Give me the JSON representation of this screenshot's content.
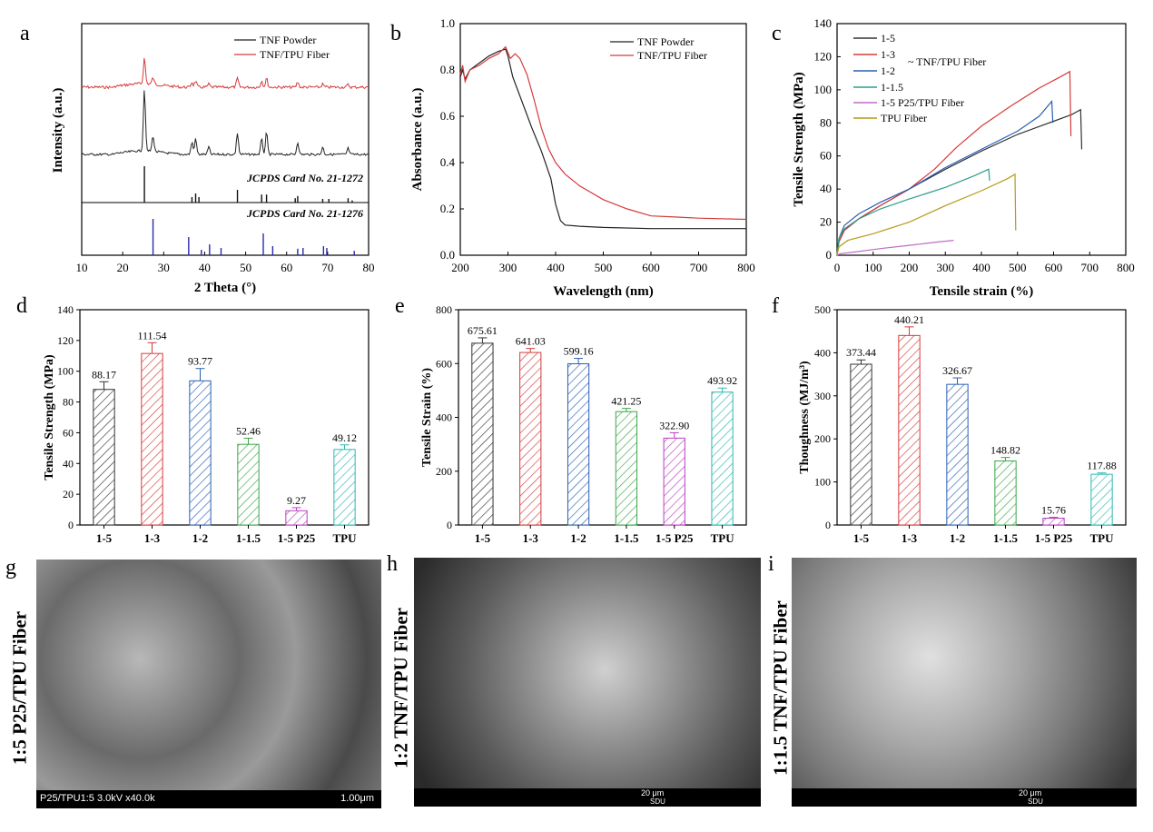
{
  "panels": {
    "a": {
      "letter": "a",
      "type": "line",
      "xlabel": "2 Theta (°)",
      "ylabel": "Intensity (a.u.)",
      "xlim": [
        10,
        80
      ],
      "xticks": [
        10,
        20,
        30,
        40,
        50,
        60,
        70,
        80
      ],
      "legend": [
        "TNF Powder",
        "TNF/TPU Fiber"
      ],
      "card1": "JCPDS Card No. 21-1272",
      "card2": "JCPDS Card No. 21-1276",
      "colors": {
        "powder": "#222222",
        "fiber": "#d63a3a",
        "card1": "#111111",
        "card2": "#2a2aa8"
      },
      "card1_peaks": [
        [
          25.3,
          1.0
        ],
        [
          36.9,
          0.15
        ],
        [
          37.8,
          0.25
        ],
        [
          38.6,
          0.15
        ],
        [
          48.0,
          0.35
        ],
        [
          53.9,
          0.22
        ],
        [
          55.1,
          0.22
        ],
        [
          62.1,
          0.12
        ],
        [
          62.7,
          0.18
        ],
        [
          68.8,
          0.1
        ],
        [
          70.3,
          0.1
        ],
        [
          75.0,
          0.12
        ],
        [
          76.0,
          0.06
        ]
      ],
      "card2_peaks": [
        [
          27.4,
          1.0
        ],
        [
          36.1,
          0.5
        ],
        [
          39.2,
          0.15
        ],
        [
          41.2,
          0.3
        ],
        [
          44.0,
          0.2
        ],
        [
          54.3,
          0.6
        ],
        [
          56.6,
          0.25
        ],
        [
          62.7,
          0.18
        ],
        [
          64.0,
          0.2
        ],
        [
          69.0,
          0.25
        ],
        [
          69.8,
          0.2
        ],
        [
          76.5,
          0.12
        ]
      ]
    },
    "b": {
      "letter": "b",
      "type": "line",
      "xlabel": "Wavelength (nm)",
      "ylabel": "Absorbance (a.u.)",
      "xlim": [
        200,
        800
      ],
      "ylim": [
        0,
        1.0
      ],
      "xticks": [
        200,
        300,
        400,
        500,
        600,
        700,
        800
      ],
      "yticks": [
        "0.0",
        "0.2",
        "0.4",
        "0.6",
        "0.8",
        "1.0"
      ],
      "legend": [
        "TNF Powder",
        "TNF/TPU Fiber"
      ],
      "colors": {
        "powder": "#222222",
        "fiber": "#d63a3a"
      },
      "series": [
        {
          "name": "TNF Powder",
          "color": "#222222",
          "points": [
            [
              200,
              0.77
            ],
            [
              205,
              0.8
            ],
            [
              210,
              0.76
            ],
            [
              220,
              0.8
            ],
            [
              240,
              0.83
            ],
            [
              260,
              0.86
            ],
            [
              280,
              0.88
            ],
            [
              295,
              0.89
            ],
            [
              300,
              0.86
            ],
            [
              310,
              0.77
            ],
            [
              330,
              0.66
            ],
            [
              350,
              0.55
            ],
            [
              370,
              0.45
            ],
            [
              390,
              0.33
            ],
            [
              400,
              0.22
            ],
            [
              410,
              0.15
            ],
            [
              420,
              0.13
            ],
            [
              450,
              0.125
            ],
            [
              500,
              0.12
            ],
            [
              600,
              0.115
            ],
            [
              700,
              0.115
            ],
            [
              800,
              0.115
            ]
          ]
        },
        {
          "name": "TNF/TPU Fiber",
          "color": "#d63a3a",
          "points": [
            [
              200,
              0.78
            ],
            [
              205,
              0.82
            ],
            [
              210,
              0.75
            ],
            [
              220,
              0.8
            ],
            [
              240,
              0.82
            ],
            [
              260,
              0.85
            ],
            [
              280,
              0.87
            ],
            [
              295,
              0.9
            ],
            [
              305,
              0.85
            ],
            [
              315,
              0.87
            ],
            [
              325,
              0.85
            ],
            [
              340,
              0.78
            ],
            [
              355,
              0.67
            ],
            [
              370,
              0.55
            ],
            [
              385,
              0.46
            ],
            [
              400,
              0.4
            ],
            [
              420,
              0.35
            ],
            [
              450,
              0.3
            ],
            [
              500,
              0.24
            ],
            [
              550,
              0.2
            ],
            [
              600,
              0.17
            ],
            [
              650,
              0.165
            ],
            [
              700,
              0.16
            ],
            [
              800,
              0.155
            ]
          ]
        }
      ]
    },
    "c": {
      "letter": "c",
      "type": "line",
      "xlabel": "Tensile strain (%)",
      "ylabel": "Tensile Strength (MPa)",
      "xlim": [
        0,
        800
      ],
      "ylim": [
        0,
        140
      ],
      "xticks": [
        0,
        100,
        200,
        300,
        400,
        500,
        600,
        700,
        800
      ],
      "yticks": [
        0,
        20,
        40,
        60,
        80,
        100,
        120,
        140
      ],
      "legend": [
        "1-5",
        "1-3",
        "1-2",
        "1-1.5",
        "1-5 P25/TPU Fiber",
        "TPU Fiber"
      ],
      "legend_note": "TNF/TPU Fiber",
      "series": [
        {
          "name": "1-5",
          "color": "#333333",
          "points": [
            [
              0,
              0
            ],
            [
              5,
              8
            ],
            [
              20,
              15
            ],
            [
              60,
              22
            ],
            [
              120,
              30
            ],
            [
              200,
              40
            ],
            [
              300,
              52
            ],
            [
              400,
              63
            ],
            [
              500,
              73
            ],
            [
              600,
              81
            ],
            [
              650,
              85
            ],
            [
              675,
              88
            ],
            [
              678,
              64
            ]
          ]
        },
        {
          "name": "1-3",
          "color": "#d63a3a",
          "points": [
            [
              0,
              0
            ],
            [
              5,
              8
            ],
            [
              20,
              15
            ],
            [
              60,
              22
            ],
            [
              120,
              30
            ],
            [
              200,
              40
            ],
            [
              270,
              52
            ],
            [
              330,
              65
            ],
            [
              400,
              78
            ],
            [
              480,
              90
            ],
            [
              560,
              101
            ],
            [
              620,
              108
            ],
            [
              645,
              111
            ],
            [
              648,
              72
            ]
          ]
        },
        {
          "name": "1-2",
          "color": "#2a5fb3",
          "points": [
            [
              0,
              0
            ],
            [
              5,
              10
            ],
            [
              20,
              18
            ],
            [
              60,
              25
            ],
            [
              120,
              32
            ],
            [
              200,
              40
            ],
            [
              300,
              53
            ],
            [
              400,
              64
            ],
            [
              500,
              75
            ],
            [
              560,
              84
            ],
            [
              595,
              93
            ],
            [
              598,
              80
            ]
          ]
        },
        {
          "name": "1-1.5",
          "color": "#2d9e88",
          "points": [
            [
              0,
              0
            ],
            [
              5,
              10
            ],
            [
              20,
              16
            ],
            [
              60,
              22
            ],
            [
              120,
              28
            ],
            [
              200,
              34
            ],
            [
              300,
              41
            ],
            [
              380,
              48
            ],
            [
              420,
              52
            ],
            [
              423,
              45
            ]
          ]
        },
        {
          "name": "1-5 P25/TPU Fiber",
          "color": "#c06bc6",
          "points": [
            [
              0,
              0
            ],
            [
              10,
              1
            ],
            [
              50,
              2
            ],
            [
              120,
              4
            ],
            [
              200,
              6
            ],
            [
              280,
              8
            ],
            [
              323,
              9
            ]
          ]
        },
        {
          "name": "TPU Fiber",
          "color": "#b59a17",
          "points": [
            [
              0,
              0
            ],
            [
              5,
              5
            ],
            [
              30,
              9
            ],
            [
              100,
              13
            ],
            [
              200,
              20
            ],
            [
              300,
              30
            ],
            [
              400,
              39
            ],
            [
              470,
              46
            ],
            [
              493,
              49
            ],
            [
              495,
              15
            ]
          ]
        }
      ]
    },
    "d": {
      "letter": "d",
      "type": "bar",
      "ylabel": "Tensile Strength (MPa)",
      "ylim": [
        0,
        140
      ],
      "yticks": [
        0,
        20,
        40,
        60,
        80,
        100,
        120,
        140
      ],
      "categories": [
        "1-5",
        "1-3",
        "1-2",
        "1-1.5",
        "1-5 P25",
        "TPU"
      ],
      "values": [
        88.17,
        111.54,
        93.77,
        52.46,
        9.27,
        49.12
      ],
      "labels": [
        "88.17",
        "111.54",
        "93.77",
        "52.46",
        "9.27",
        "49.12"
      ],
      "errors": [
        5,
        7,
        8,
        4,
        2,
        3
      ]
    },
    "e": {
      "letter": "e",
      "type": "bar",
      "ylabel": "Tensile Strain (%)",
      "ylim": [
        0,
        800
      ],
      "yticks": [
        0,
        200,
        400,
        600,
        800
      ],
      "categories": [
        "1-5",
        "1-3",
        "1-2",
        "1-1.5",
        "1-5 P25",
        "TPU"
      ],
      "values": [
        675.61,
        641.03,
        599.16,
        421.25,
        322.9,
        493.92
      ],
      "labels": [
        "675.61",
        "641.03",
        "599.16",
        "421.25",
        "322.90",
        "493.92"
      ],
      "errors": [
        20,
        15,
        20,
        12,
        20,
        15
      ]
    },
    "f": {
      "letter": "f",
      "type": "bar",
      "ylabel": "Thoughness (MJ/m³)",
      "ylim": [
        0,
        500
      ],
      "yticks": [
        0,
        100,
        200,
        300,
        400,
        500
      ],
      "categories": [
        "1-5",
        "1-3",
        "1-2",
        "1-1.5",
        "1-5 P25",
        "TPU"
      ],
      "values": [
        373.44,
        440.21,
        326.67,
        148.82,
        15.76,
        117.88
      ],
      "labels": [
        "373.44",
        "440.21",
        "326.67",
        "148.82",
        "15.76",
        "117.88"
      ],
      "errors": [
        10,
        20,
        15,
        8,
        2,
        3
      ]
    }
  },
  "bar_colors": [
    "#333333",
    "#d63a3a",
    "#2a5fb3",
    "#3aa64a",
    "#b93fc0",
    "#2db8b0"
  ],
  "sem": {
    "g": {
      "letter": "g",
      "label": "1:5 P25/TPU Fiber",
      "caption": "P25/TPU1:5 3.0kV x40.0k",
      "scale": "1.00μm"
    },
    "h": {
      "letter": "h",
      "label": "1:2 TNF/TPU Fiber",
      "scale": "20 μm",
      "footer": "SDU"
    },
    "i": {
      "letter": "i",
      "label": "1:1.5 TNF/TPU Fiber",
      "scale": "20 μm",
      "footer": "SDU"
    }
  }
}
